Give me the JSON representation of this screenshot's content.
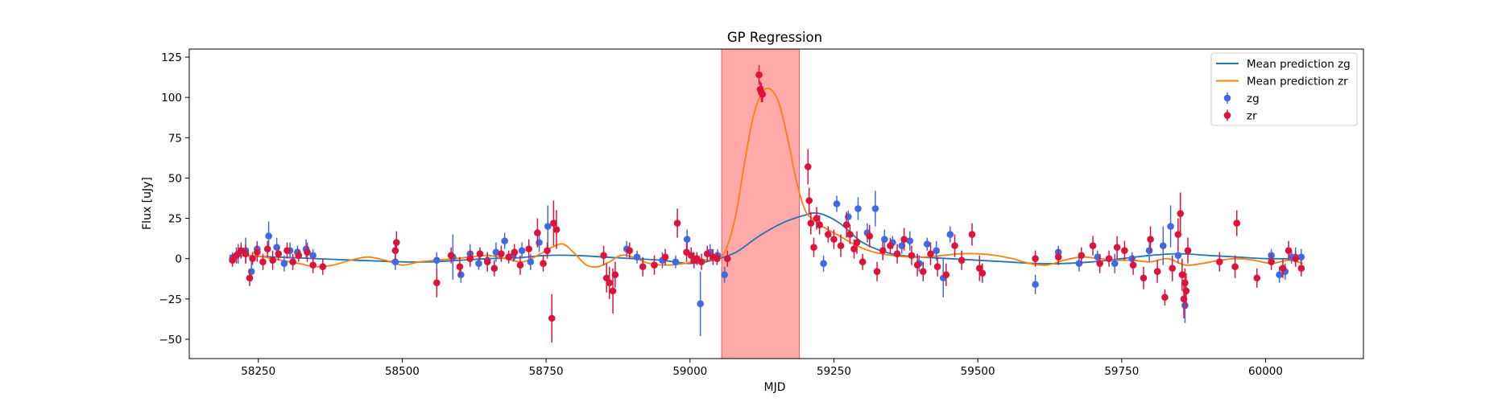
{
  "chart_data": {
    "type": "scatter",
    "title": "GP Regression",
    "xlabel": "MJD",
    "ylabel": "Flux [uJy]",
    "xlim": [
      58130,
      60170
    ],
    "ylim": [
      -62,
      130
    ],
    "xticks": [
      58250,
      58500,
      58750,
      59000,
      59250,
      59500,
      59750,
      60000
    ],
    "yticks": [
      -50,
      -25,
      0,
      25,
      50,
      75,
      100,
      125
    ],
    "grid": false,
    "legend_position": "top-right",
    "highlight_region": {
      "x_start": 59055,
      "x_end": 59190,
      "color": "#ff9a9a"
    },
    "legend": [
      "Mean prediction zg",
      "Mean prediction zr",
      "zg",
      "zr"
    ],
    "series": [
      {
        "name": "Mean prediction zg",
        "kind": "line",
        "color": "#1f77b4",
        "x": [
          58200,
          58280,
          58350,
          58420,
          58500,
          58550,
          58600,
          58650,
          58700,
          58750,
          58800,
          58850,
          58900,
          58950,
          59000,
          59040,
          59080,
          59120,
          59160,
          59200,
          59225,
          59260,
          59300,
          59350,
          59400,
          59450,
          59500,
          59550,
          59600,
          59650,
          59700,
          59750,
          59800,
          59850,
          59900,
          59950,
          60000,
          60065
        ],
        "y": [
          2,
          1,
          0,
          -1,
          -2,
          -2,
          -1,
          0,
          0.5,
          2,
          2,
          1,
          0,
          -1,
          -3,
          -1,
          4,
          14,
          22,
          27,
          28,
          22,
          10,
          3,
          1,
          0,
          -1,
          -2,
          -3,
          -3,
          -2,
          0,
          2,
          3,
          2,
          1,
          0,
          0
        ]
      },
      {
        "name": "Mean prediction zr",
        "kind": "line",
        "color": "#ff7f0e",
        "x": [
          58200,
          58230,
          58260,
          58290,
          58320,
          58350,
          58380,
          58410,
          58440,
          58470,
          58500,
          58530,
          58560,
          58590,
          58620,
          58650,
          58680,
          58710,
          58740,
          58760,
          58780,
          58800,
          58820,
          58840,
          58860,
          58880,
          58900,
          58930,
          58960,
          58990,
          59020,
          59050,
          59065,
          59080,
          59095,
          59110,
          59125,
          59140,
          59155,
          59170,
          59185,
          59200,
          59215,
          59230,
          59260,
          59290,
          59320,
          59350,
          59380,
          59410,
          59440,
          59470,
          59500,
          59530,
          59560,
          59590,
          59620,
          59650,
          59680,
          59710,
          59740,
          59770,
          59800,
          59830,
          59860,
          59890,
          59920,
          59950,
          59980,
          60010,
          60040,
          60065
        ],
        "y": [
          1,
          2,
          1,
          -1,
          -3,
          -5,
          -4,
          -1,
          1,
          -1,
          -4,
          -2,
          -1,
          0,
          1,
          2,
          0,
          -2,
          3,
          7,
          9,
          3,
          -4,
          -5,
          -2,
          2,
          1,
          -3,
          -4,
          -3,
          -1,
          0,
          8,
          28,
          60,
          88,
          103,
          105,
          96,
          74,
          48,
          30,
          24,
          20,
          14,
          8,
          4,
          2,
          1,
          1,
          2,
          3,
          3,
          2,
          0,
          -3,
          -4,
          -1,
          1,
          0,
          -1,
          -1,
          -2,
          0,
          -4,
          -3,
          -1,
          0,
          -1,
          -3,
          -1,
          -3
        ]
      },
      {
        "name": "zg",
        "kind": "errorbar",
        "color": "#4169e1",
        "x": [
          58205,
          58215,
          58228,
          58238,
          58248,
          58268,
          58282,
          58295,
          58305,
          58318,
          58333,
          58345,
          58488,
          58560,
          58588,
          58602,
          58618,
          58633,
          58648,
          58663,
          58678,
          58693,
          58708,
          58723,
          58738,
          58753,
          58890,
          58908,
          58952,
          58975,
          58995,
          59018,
          59035,
          59048,
          59060,
          59232,
          59255,
          59275,
          59292,
          59308,
          59322,
          59338,
          59352,
          59368,
          59382,
          59398,
          59412,
          59428,
          59440,
          59452,
          59600,
          59640,
          59676,
          59708,
          59738,
          59768,
          59798,
          59822,
          59835,
          59848,
          59860,
          60010,
          60024,
          60034,
          60045,
          60052,
          60062
        ],
        "y": [
          0,
          3,
          5,
          -8,
          6,
          14,
          7,
          -3,
          5,
          4,
          6,
          2,
          -2,
          -1,
          1,
          -10,
          3,
          -3,
          -1,
          4,
          11,
          2,
          5,
          -2,
          10,
          20,
          6,
          1,
          -1,
          -2,
          12,
          -28,
          4,
          2,
          -10,
          -3,
          34,
          26,
          31,
          16,
          31,
          12,
          10,
          8,
          11,
          -3,
          9,
          5,
          -12,
          15,
          -16,
          4,
          -3,
          1,
          -3,
          0,
          5,
          8,
          20,
          2,
          -29,
          2,
          -10,
          -8,
          1,
          1,
          1
        ],
        "err": [
          4,
          6,
          8,
          6,
          5,
          9,
          6,
          5,
          5,
          4,
          6,
          4,
          5,
          5,
          14,
          5,
          6,
          4,
          5,
          6,
          5,
          4,
          5,
          5,
          6,
          13,
          5,
          4,
          5,
          4,
          6,
          20,
          5,
          4,
          5,
          5,
          5,
          4,
          7,
          6,
          11,
          6,
          4,
          5,
          6,
          5,
          4,
          6,
          12,
          5,
          6,
          4,
          5,
          4,
          6,
          4,
          7,
          12,
          13,
          5,
          11,
          4,
          5,
          5,
          4,
          6,
          5
        ]
      },
      {
        "name": "zr",
        "kind": "errorbar",
        "color": "#dc143c",
        "x": [
          58205,
          58212,
          58220,
          58228,
          58235,
          58240,
          58248,
          58258,
          58266,
          58275,
          58285,
          58300,
          58310,
          58320,
          58335,
          58345,
          58362,
          58488,
          58490,
          58560,
          58585,
          58600,
          58618,
          58635,
          58648,
          58660,
          58672,
          58685,
          58695,
          58705,
          58720,
          58735,
          58745,
          58752,
          58760,
          58763,
          58768,
          58850,
          58855,
          58860,
          58866,
          58870,
          58895,
          58918,
          58938,
          58957,
          58978,
          58994,
          59002,
          59007,
          59012,
          59020,
          59030,
          59040,
          59047,
          59065,
          59120,
          59122,
          59124,
          59126,
          59205,
          59207,
          59210,
          59215,
          59220,
          59225,
          59240,
          59250,
          59262,
          59272,
          59278,
          59285,
          59290,
          59300,
          59312,
          59325,
          59335,
          59348,
          59360,
          59372,
          59385,
          59395,
          59405,
          59418,
          59430,
          59445,
          59460,
          59472,
          59490,
          59503,
          59508,
          59600,
          59640,
          59680,
          59700,
          59712,
          59728,
          59742,
          59755,
          59770,
          59788,
          59800,
          59812,
          59825,
          59838,
          59848,
          59852,
          59855,
          59858,
          59860,
          59862,
          59865,
          59920,
          59947,
          59950,
          59985,
          60010,
          60030,
          60040,
          60052,
          60062
        ],
        "y": [
          -1,
          2,
          5,
          3,
          -12,
          0,
          4,
          -2,
          6,
          -1,
          3,
          5,
          -2,
          2,
          4,
          -4,
          -5,
          5,
          10,
          -15,
          2,
          -5,
          0,
          3,
          -2,
          -6,
          3,
          1,
          4,
          -4,
          6,
          16,
          -3,
          5,
          -37,
          22,
          18,
          2,
          -12,
          -15,
          -20,
          -10,
          5,
          -5,
          -4,
          1,
          22,
          4,
          2,
          -1,
          0,
          -2,
          3,
          1,
          0,
          0,
          114,
          105,
          103,
          102,
          57,
          36,
          22,
          7,
          25,
          21,
          15,
          12,
          8,
          21,
          15,
          6,
          10,
          -2,
          14,
          -8,
          5,
          8,
          3,
          12,
          2,
          -4,
          -8,
          3,
          -5,
          -10,
          8,
          -1,
          15,
          -6,
          -9,
          0,
          1,
          2,
          8,
          -3,
          0,
          7,
          5,
          -4,
          -12,
          12,
          -8,
          -24,
          -6,
          15,
          28,
          -10,
          -25,
          -15,
          -20,
          5,
          -2,
          -5,
          22,
          -12,
          -2,
          -6,
          5,
          0,
          -6
        ],
        "err": [
          4,
          5,
          5,
          6,
          5,
          4,
          6,
          5,
          5,
          6,
          4,
          5,
          5,
          4,
          6,
          5,
          5,
          6,
          7,
          9,
          5,
          6,
          5,
          4,
          6,
          5,
          5,
          4,
          5,
          6,
          6,
          9,
          5,
          5,
          15,
          14,
          12,
          6,
          9,
          10,
          14,
          8,
          5,
          6,
          6,
          5,
          9,
          6,
          5,
          5,
          4,
          5,
          5,
          5,
          4,
          5,
          6,
          5,
          6,
          5,
          11,
          8,
          7,
          6,
          7,
          6,
          5,
          6,
          7,
          8,
          6,
          6,
          7,
          5,
          7,
          6,
          6,
          5,
          6,
          7,
          6,
          7,
          6,
          7,
          6,
          7,
          7,
          6,
          7,
          8,
          6,
          5,
          5,
          5,
          6,
          6,
          5,
          7,
          6,
          6,
          7,
          8,
          7,
          5,
          8,
          10,
          13,
          10,
          12,
          9,
          11,
          8,
          6,
          7,
          8,
          6,
          5,
          6,
          6,
          5,
          5
        ]
      }
    ]
  }
}
